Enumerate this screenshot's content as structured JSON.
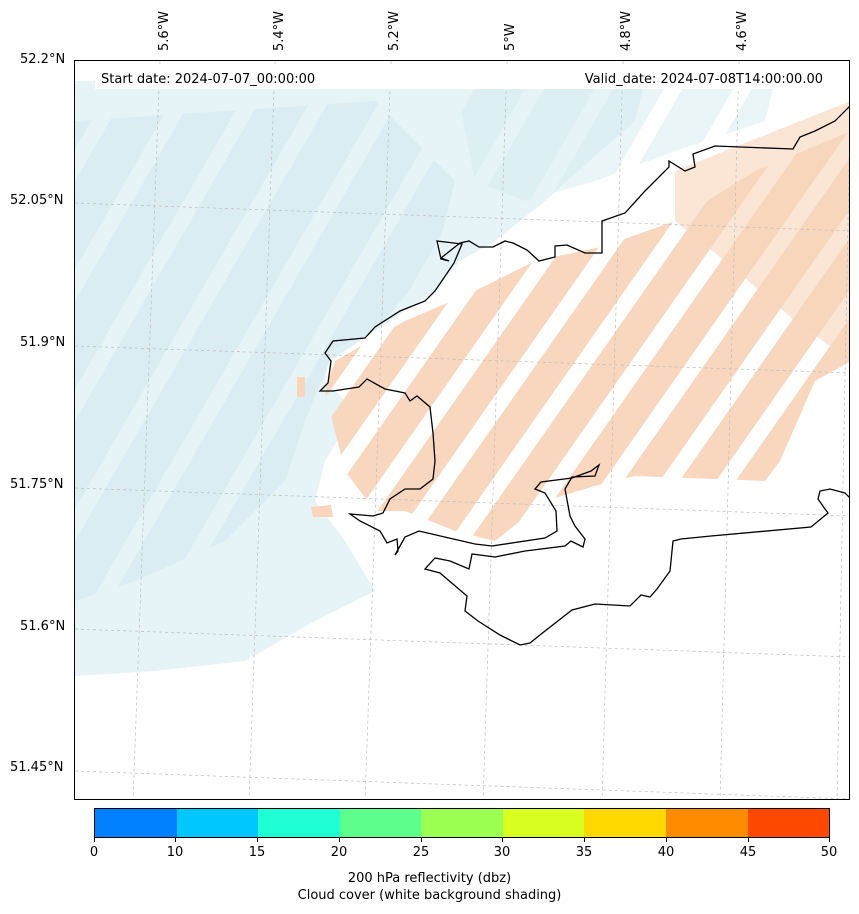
{
  "map": {
    "start_date": "Start date: 2024-07-07_00:00:00",
    "valid_date": "Valid_date: 2024-07-08T14:00:00.00",
    "lat_labels": [
      "52.2°N",
      "52.05°N",
      "51.9°N",
      "51.75°N",
      "51.6°N",
      "51.45°N"
    ],
    "lon_labels": [
      "5.6°W",
      "5.4°W",
      "5.2°W",
      "5°W",
      "4.8°W",
      "4.6°W"
    ],
    "coastline_color": "#000000",
    "cloud_color": "#d8ecf2",
    "reflectivity_shading_color": "#f8d5bb"
  },
  "colorbar": {
    "ticks": [
      "0",
      "10",
      "15",
      "20",
      "25",
      "30",
      "35",
      "40",
      "45",
      "50"
    ],
    "colors": [
      "#0080ff",
      "#00c8ff",
      "#1effd4",
      "#5cff8c",
      "#9aff50",
      "#d8ff20",
      "#ffd800",
      "#ff8c00",
      "#ff4800"
    ],
    "label_line1": "200 hPa reflectivity (dbz)",
    "label_line2": "Cloud cover (white background shading)"
  }
}
